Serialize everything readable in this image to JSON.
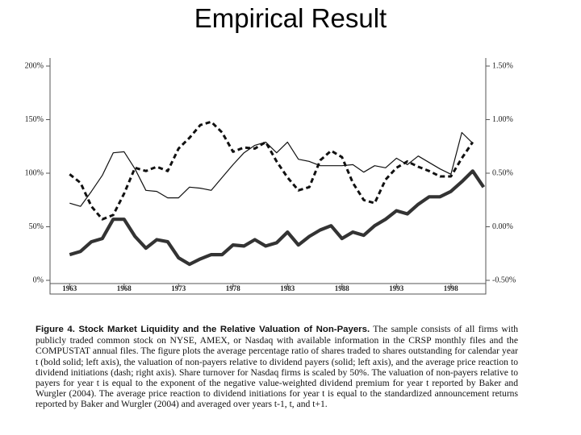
{
  "chart_data": {
    "type": "line",
    "title": "Empirical Result",
    "x": [
      1963,
      1964,
      1965,
      1966,
      1967,
      1968,
      1969,
      1970,
      1971,
      1972,
      1973,
      1974,
      1975,
      1976,
      1977,
      1978,
      1979,
      1980,
      1981,
      1982,
      1983,
      1984,
      1985,
      1986,
      1987,
      1988,
      1989,
      1990,
      1991,
      1992,
      1993,
      1994,
      1995,
      1996,
      1997,
      1998,
      1999,
      2000,
      2001
    ],
    "xlim": [
      1961.2,
      2001.2
    ],
    "xticks": [
      1963,
      1968,
      1973,
      1978,
      1983,
      1988,
      1993,
      1998
    ],
    "ylim": [
      0,
      200
    ],
    "yticks": [
      {
        "value": 0,
        "label": "0%"
      },
      {
        "value": 50,
        "label": "50%"
      },
      {
        "value": 100,
        "label": "100%"
      },
      {
        "value": 150,
        "label": "150%"
      },
      {
        "value": 200,
        "label": "200%"
      }
    ],
    "y2lim": [
      -0.5,
      1.5
    ],
    "y2ticks": [
      {
        "value": -0.5,
        "label": "-0.50%"
      },
      {
        "value": 0,
        "label": "0.00%"
      },
      {
        "value": 0.5,
        "label": "0.50%"
      },
      {
        "value": 1,
        "label": "1.00%"
      },
      {
        "value": 1.5,
        "label": "1.50%"
      }
    ],
    "series": [
      {
        "color": "#333333",
        "style": "bold",
        "values": [
          24,
          27,
          36,
          39,
          57,
          57,
          41,
          30,
          38,
          36,
          21,
          15,
          20,
          24,
          24,
          33,
          32,
          38,
          32,
          35,
          45,
          33,
          41,
          47,
          51,
          39,
          45,
          42,
          51,
          57,
          65,
          62,
          71,
          78,
          78,
          83,
          92,
          102,
          87
        ]
      },
      {
        "color": "#111111",
        "style": "solid",
        "values": [
          72,
          69,
          83,
          98,
          119,
          120,
          104,
          84,
          83,
          77,
          77,
          87,
          86,
          84,
          96,
          108,
          119,
          126,
          129,
          119,
          129,
          113,
          111,
          107,
          107,
          107,
          108,
          101,
          107,
          105,
          114,
          108,
          116,
          110,
          104,
          99,
          138,
          128,
          null
        ]
      },
      {
        "color": "#111111",
        "style": "dashed",
        "axis": "y2",
        "values": [
          0.49,
          0.41,
          0.19,
          0.07,
          0.11,
          0.31,
          0.55,
          0.52,
          0.56,
          0.52,
          0.73,
          0.83,
          0.95,
          0.98,
          0.88,
          0.7,
          0.74,
          0.73,
          0.79,
          0.61,
          0.46,
          0.34,
          0.37,
          0.62,
          0.71,
          0.65,
          0.41,
          0.25,
          0.22,
          0.44,
          0.55,
          0.61,
          0.56,
          0.52,
          0.47,
          0.47,
          0.64,
          0.79,
          null
        ]
      }
    ],
    "caption_title": "Figure 4. Stock Market Liquidity and the Relative Valuation of Non-Payers.",
    "caption": "The sample consists of all firms with publicly traded common stock on NYSE, AMEX, or Nasdaq with available information in the CRSP monthly files and the COMPUSTAT annual files. The figure plots the average percentage ratio of shares traded to shares outstanding for calendar year t (bold solid; left axis), the valuation of non-payers relative to dividend payers (solid; left axis), and the average price reaction to dividend initiations (dash; right axis). Share turnover for Nasdaq firms is scaled by 50%. The valuation of non-payers relative to payers for year t is equal to the exponent of the negative value-weighted dividend premium for year t reported by Baker and Wurgler (2004). The average price reaction to dividend initiations for year t is equal to the standardized announcement returns reported by Baker and Wurgler (2004) and averaged over years t-1, t, and t+1."
  }
}
